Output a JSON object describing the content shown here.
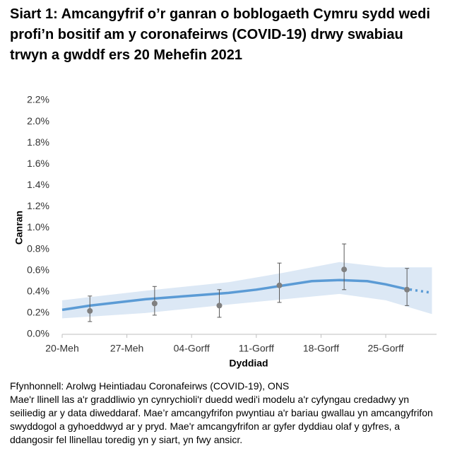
{
  "chart_data": {
    "type": "line",
    "title": "Siart 1: Amcangyfrif o’r ganran o boblogaeth Cymru sydd wedi profi’n bositif am y coronafeirws (COVID-19) drwy swabiau trwyn a gwddf ers 20 Mehefin 2021",
    "y_label": "Canran",
    "x_label": "Dyddiad",
    "source": "Ffynhonnell: Arolwg Heintiadau Coronafeirws (COVID-19), ONS",
    "note": "Mae'r llinell las a'r graddliwio yn cynrychioli'r duedd wedi'i modelu a'r cyfyngau credadwy yn seiliedig ar y data diweddaraf. Mae’r amcangyfrifon pwyntiau a'r bariau gwallau yn amcangyfrifon swyddogol a gyhoeddwyd ar y pryd. Mae'r amcangyfrifon ar gyfer dyddiau olaf y gyfres, a ddangosir fel llinellau toredig yn y siart, yn fwy ansicr.",
    "color": "#5b9bd5",
    "band_color": "#dce8f5",
    "point_color": "#808080",
    "xlim": [
      0,
      40.5
    ],
    "xticks": [
      {
        "value": 0,
        "label": "20-Meh"
      },
      {
        "value": 7,
        "label": "27-Meh"
      },
      {
        "value": 14,
        "label": "04-Gorff"
      },
      {
        "value": 21,
        "label": "11-Gorff"
      },
      {
        "value": 28,
        "label": "18-Gorff"
      },
      {
        "value": 35,
        "label": "25-Gorff"
      }
    ],
    "ylim": [
      0,
      2.2
    ],
    "yticks": [
      {
        "value": 0,
        "label": "0.0%"
      },
      {
        "value": 0.2,
        "label": "0.2%"
      },
      {
        "value": 0.4,
        "label": "0.4%"
      },
      {
        "value": 0.6,
        "label": "0.6%"
      },
      {
        "value": 0.8,
        "label": "0.8%"
      },
      {
        "value": 1.0,
        "label": "1.0%"
      },
      {
        "value": 1.2,
        "label": "1.2%"
      },
      {
        "value": 1.4,
        "label": "1.4%"
      },
      {
        "value": 1.6,
        "label": "1.6%"
      },
      {
        "value": 1.8,
        "label": "1.8%"
      },
      {
        "value": 2.0,
        "label": "2.0%"
      },
      {
        "value": 2.2,
        "label": "2.2%"
      }
    ],
    "trend": {
      "x": [
        0,
        3,
        6,
        9,
        12,
        15,
        18,
        21,
        24,
        27,
        30,
        33,
        35,
        37
      ],
      "values": [
        0.23,
        0.27,
        0.3,
        0.33,
        0.35,
        0.37,
        0.39,
        0.42,
        0.46,
        0.5,
        0.51,
        0.5,
        0.47,
        0.43
      ]
    },
    "tentative": {
      "x": [
        37,
        40
      ],
      "values": [
        0.43,
        0.39
      ]
    },
    "band": {
      "x": [
        0,
        9,
        18,
        24,
        30,
        35,
        40
      ],
      "lower": [
        0.15,
        0.2,
        0.28,
        0.33,
        0.38,
        0.32,
        0.19
      ],
      "upper": [
        0.32,
        0.41,
        0.49,
        0.58,
        0.68,
        0.63,
        0.63
      ]
    },
    "estimates": {
      "x": [
        3,
        10,
        17,
        23.5,
        30.5,
        37.3
      ],
      "values": [
        0.22,
        0.29,
        0.27,
        0.46,
        0.61,
        0.42
      ],
      "lower": [
        0.12,
        0.18,
        0.16,
        0.3,
        0.42,
        0.27
      ],
      "upper": [
        0.36,
        0.45,
        0.42,
        0.67,
        0.85,
        0.62
      ]
    }
  }
}
